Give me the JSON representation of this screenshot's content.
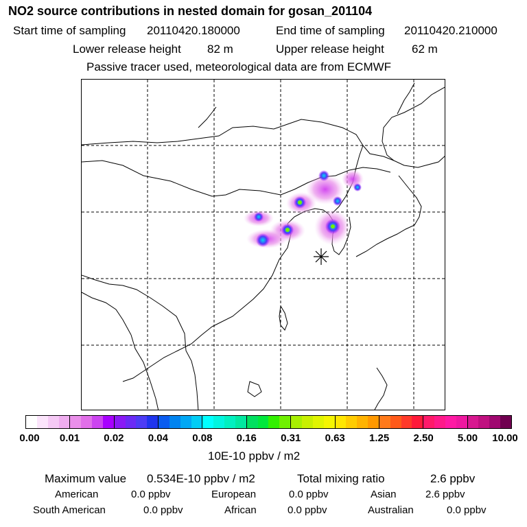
{
  "header": {
    "title": "NO2 source contributions in nested domain for gosan_201104",
    "start_label": "Start time of sampling",
    "start_value": "20110420.180000",
    "end_label": "End time of sampling",
    "end_value": "20110420.210000",
    "lower_label": "Lower release height",
    "lower_value": "82 m",
    "upper_label": "Upper release height",
    "upper_value": "62 m",
    "note": "Passive tracer used, meteorological data are from ECMWF"
  },
  "map": {
    "receptor_icon": "asterisk-receptor-icon",
    "gridline_color": "#000000",
    "coast_color": "#000000"
  },
  "colorbar": {
    "ticks": [
      "0.00",
      "0.01",
      "0.02",
      "0.04",
      "0.08",
      "0.16",
      "0.31",
      "0.63",
      "1.25",
      "2.50",
      "5.00",
      "10.00"
    ],
    "colors": [
      [
        "#ffffff",
        "#fbe4fb",
        "#f5c9f5",
        "#efadef"
      ],
      [
        "#e98fe9",
        "#e16fe9",
        "#cc44f0",
        "#a800ff"
      ],
      [
        "#8a1af5",
        "#6b2bf5",
        "#4d3cf5",
        "#1f35ee"
      ],
      [
        "#0a5cf0",
        "#0084f0",
        "#00a8f5",
        "#00cdf5"
      ],
      [
        "#00ffff",
        "#00f5e0",
        "#00f0c0",
        "#00e8a0"
      ],
      [
        "#00e060",
        "#00e83c",
        "#33f000",
        "#70f000"
      ],
      [
        "#a8f000",
        "#c8f000",
        "#e0f500",
        "#f5f500"
      ],
      [
        "#ffe600",
        "#ffcc00",
        "#ffb300",
        "#ff9900"
      ],
      [
        "#ff7a1a",
        "#ff5a1a",
        "#ff3a2a",
        "#ff1a3a"
      ],
      [
        "#ff1a6a",
        "#ff1a8a",
        "#ff1aa4",
        "#ef18a0"
      ],
      [
        "#d81890",
        "#c01080",
        "#a00870",
        "#700050"
      ]
    ],
    "unit": "10E-10 ppbv / m2"
  },
  "footer": {
    "max_label": "Maximum value",
    "max_value": "0.534E-10 ppbv / m2",
    "total_label": "Total mixing ratio",
    "total_value": "2.6 ppbv",
    "regions_row1": [
      {
        "name": "American",
        "value": "0.0 ppbv"
      },
      {
        "name": "European",
        "value": "0.0 ppbv"
      },
      {
        "name": "Asian",
        "value": "2.6 ppbv"
      }
    ],
    "regions_row2": [
      {
        "name": "South American",
        "value": "0.0 ppbv"
      },
      {
        "name": "African",
        "value": "0.0 ppbv"
      },
      {
        "name": "Australian",
        "value": "0.0 ppbv"
      }
    ]
  }
}
